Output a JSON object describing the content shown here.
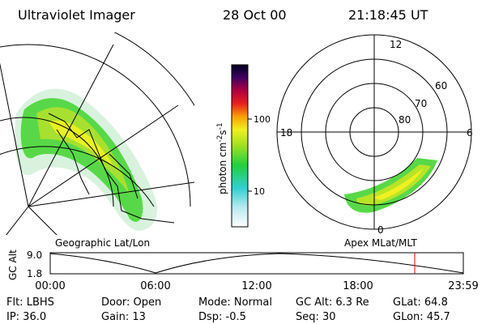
{
  "header": {
    "title": "Ultraviolet Imager",
    "date": "28 Oct 00",
    "time": "21:18:45 UT"
  },
  "colorbar": {
    "ticks": [
      "100",
      "10"
    ],
    "label": {
      "base": "photon cm",
      "exp1": "-2",
      "unit2": "s",
      "exp2": "-1"
    }
  },
  "polar": {
    "mlt_labels": [
      "12",
      "18",
      "6",
      "0"
    ],
    "lat_labels": [
      "60",
      "70",
      "80"
    ]
  },
  "panels": {
    "left_caption": "Geographic Lat/Lon",
    "right_caption": "Apex MLat/MLT"
  },
  "orbit": {
    "ylabel": "GC Alt",
    "yticks": [
      "9.0",
      "1.8"
    ],
    "xticks": [
      "00:00",
      "06:00",
      "12:00",
      "18:00",
      "23:59"
    ]
  },
  "info": {
    "rows": [
      [
        "Flt: LBHS",
        "Door: Open",
        "Mode: Normal",
        "GC Alt: 6.3 Re",
        "GLat: 64.8"
      ],
      [
        "IP: 36.0",
        "Gain: 13",
        "Dsp: -0.5",
        "Seq: 30",
        "GLon: 45.7"
      ]
    ]
  }
}
